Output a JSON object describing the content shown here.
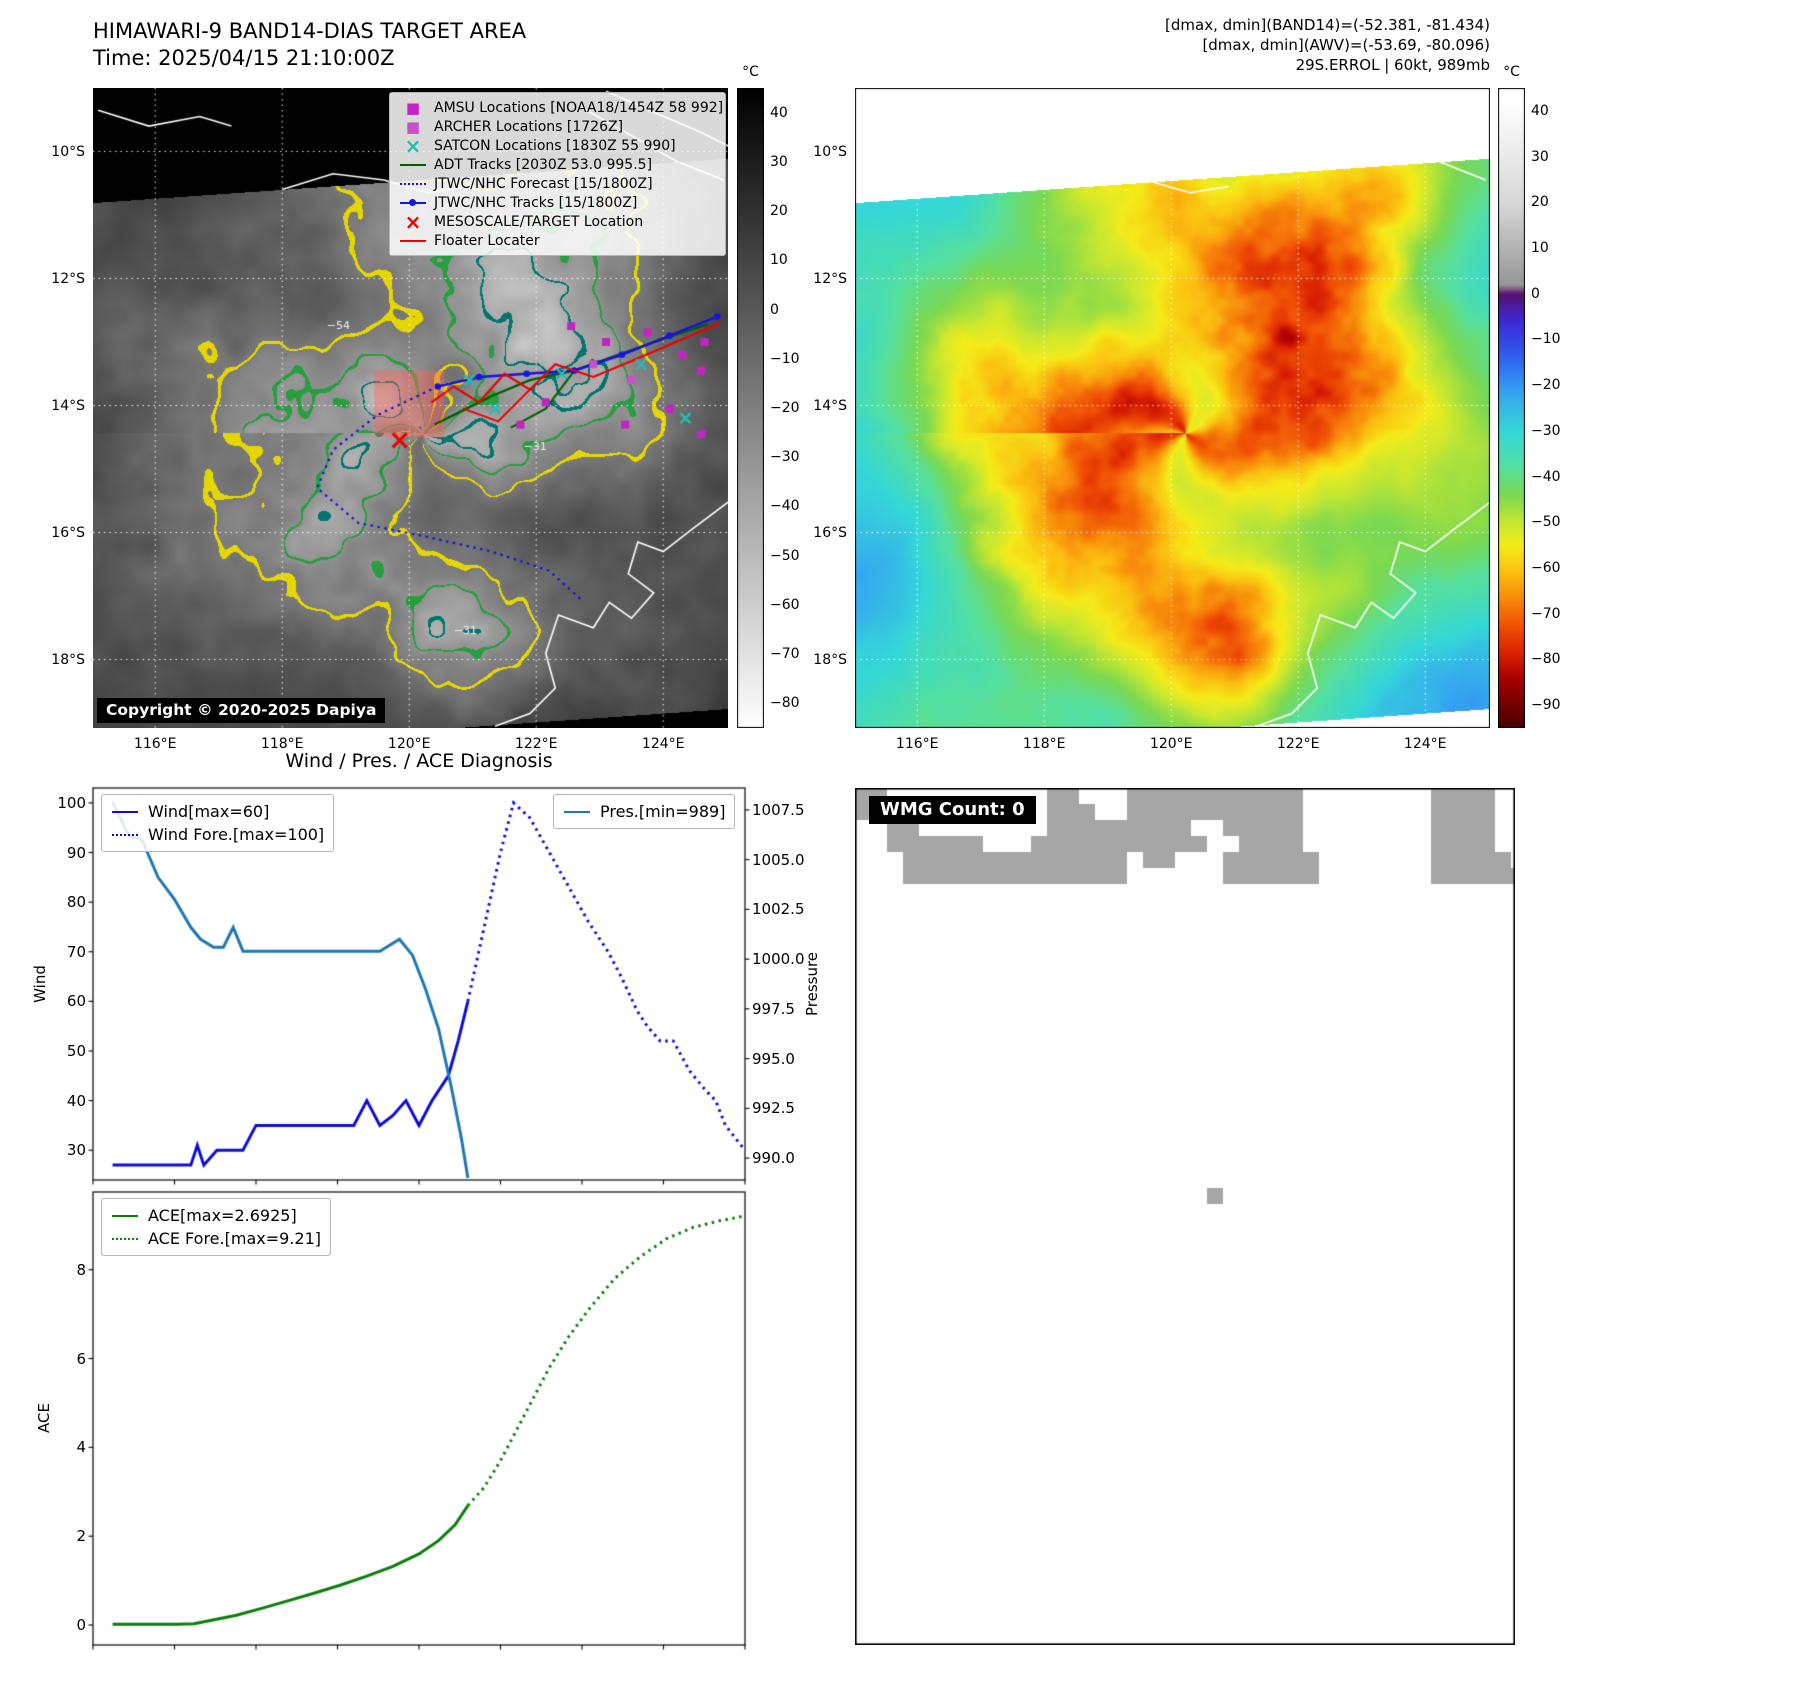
{
  "tl": {
    "title": "HIMAWARI-9 BAND14-DIAS TARGET AREA",
    "time": "Time: 2025/04/15 21:10:00Z",
    "copyright": "Copyright © 2020-2025 Dapiya",
    "colorbar": {
      "unit": "°C",
      "vmax": 45,
      "vmin": -85,
      "ticks": [
        40,
        30,
        20,
        10,
        0,
        -10,
        -20,
        -30,
        -40,
        -50,
        -60,
        -70,
        -80
      ]
    },
    "lat_vals": [
      10,
      12,
      14,
      16,
      18
    ],
    "lat_labels": [
      "10°S",
      "12°S",
      "14°S",
      "16°S",
      "18°S"
    ],
    "lon_vals": [
      116,
      118,
      120,
      122,
      124
    ],
    "lon_labels": [
      "116°E",
      "118°E",
      "120°E",
      "122°E",
      "124°E"
    ],
    "legend": [
      {
        "label": "AMSU Locations [NOAA18/1454Z 58 992]",
        "marker": "square",
        "color": "#c324c3",
        "icon": "amsu-square-icon"
      },
      {
        "label": "ARCHER Locations [1726Z]",
        "marker": "square",
        "color": "#cb4fcb",
        "icon": "archer-square-icon"
      },
      {
        "label": "SATCON Locations [1830Z 55 990]",
        "marker": "x",
        "color": "#1fbfb0",
        "icon": "satcon-x-icon"
      },
      {
        "label": "ADT Tracks [2030Z 53.0 995.5]",
        "marker": "line",
        "color": "#006000",
        "icon": "adt-line-icon"
      },
      {
        "label": "JTWC/NHC Forecast [15/1800Z]",
        "marker": "dotted",
        "color": "#1414e0",
        "icon": "forecast-dotted-icon"
      },
      {
        "label": "JTWC/NHC Tracks [15/1800Z]",
        "marker": "line-dot",
        "color": "#1414e0",
        "icon": "track-line-icon"
      },
      {
        "label": "MESOSCALE/TARGET Location",
        "marker": "x",
        "color": "#f00000",
        "icon": "target-x-icon"
      },
      {
        "label": "Floater Locater",
        "marker": "line",
        "color": "#f00000",
        "icon": "floater-line-icon"
      }
    ],
    "map": {
      "target_box": {
        "lon1": 119.45,
        "lat1": 13.45,
        "lon2": 120.55,
        "lat2": 14.5
      },
      "target_x": {
        "lon": 119.85,
        "lat": 14.55
      },
      "tracks": [
        {
          "name": "adt-track",
          "color": "#006000",
          "style": "solid",
          "width": 2.4,
          "points": [
            [
              124.7,
              12.72
            ],
            [
              124.0,
              12.95
            ],
            [
              123.3,
              13.2
            ],
            [
              122.6,
              13.45
            ],
            [
              121.9,
              13.6
            ],
            [
              121.3,
              13.85
            ],
            [
              120.8,
              14.1
            ],
            [
              120.4,
              14.3
            ]
          ]
        },
        {
          "name": "adt-track-2",
          "color": "#006000",
          "style": "solid",
          "width": 2.0,
          "points": [
            [
              122.6,
              13.45
            ],
            [
              122.15,
              14.05
            ],
            [
              121.6,
              14.35
            ]
          ]
        },
        {
          "name": "jtwc-track",
          "color": "#1414e0",
          "style": "solid",
          "width": 2.6,
          "marker": "dot",
          "points": [
            [
              124.85,
              12.6
            ],
            [
              124.1,
              12.9
            ],
            [
              123.35,
              13.2
            ],
            [
              122.6,
              13.45
            ],
            [
              121.85,
              13.5
            ],
            [
              121.1,
              13.55
            ],
            [
              120.45,
              13.7
            ]
          ]
        },
        {
          "name": "floater-track",
          "color": "#ee0000",
          "style": "solid",
          "width": 2.2,
          "points": [
            [
              124.9,
              12.7
            ],
            [
              124.2,
              13.0
            ],
            [
              123.5,
              13.3
            ],
            [
              122.9,
              13.55
            ],
            [
              122.3,
              13.35
            ],
            [
              121.9,
              13.75
            ],
            [
              121.5,
              13.5
            ],
            [
              121.1,
              13.95
            ],
            [
              120.7,
              13.7
            ],
            [
              120.35,
              13.95
            ]
          ]
        },
        {
          "name": "floater-track-2",
          "color": "#ee0000",
          "style": "solid",
          "width": 2.0,
          "points": [
            [
              121.9,
              13.75
            ],
            [
              121.4,
              14.25
            ],
            [
              120.85,
              14.05
            ]
          ]
        },
        {
          "name": "jtwc-forecast",
          "color": "#1414e0",
          "style": "dotted",
          "width": 2.2,
          "points": [
            [
              120.45,
              13.7
            ],
            [
              119.5,
              14.15
            ],
            [
              118.8,
              14.7
            ],
            [
              118.55,
              15.3
            ],
            [
              119.2,
              15.85
            ],
            [
              120.2,
              16.05
            ],
            [
              121.3,
              16.3
            ],
            [
              122.2,
              16.6
            ],
            [
              122.7,
              17.05
            ]
          ]
        }
      ],
      "amsu_squares": [
        [
          122.55,
          12.75
        ],
        [
          123.1,
          13.0
        ],
        [
          123.75,
          12.85
        ],
        [
          124.3,
          13.2
        ],
        [
          124.65,
          13.0
        ],
        [
          124.6,
          13.45
        ],
        [
          122.15,
          13.95
        ],
        [
          121.75,
          14.3
        ],
        [
          123.4,
          14.3
        ],
        [
          124.1,
          14.05
        ],
        [
          124.6,
          14.45
        ]
      ],
      "archer_squares": [
        [
          122.9,
          13.35
        ],
        [
          123.5,
          13.6
        ]
      ],
      "satcon_crosses": [
        [
          121.35,
          14.05
        ],
        [
          122.4,
          13.5
        ],
        [
          123.65,
          13.35
        ],
        [
          124.35,
          14.2
        ],
        [
          120.95,
          13.6
        ]
      ],
      "contour_labels": [
        {
          "text": "−54",
          "lon": 118.7,
          "lat": 12.8
        },
        {
          "text": "−31",
          "lon": 121.8,
          "lat": 14.7
        },
        {
          "text": "−31",
          "lon": 120.7,
          "lat": 17.6
        }
      ],
      "coasts": [
        [
          [
            115.1,
            9.35
          ],
          [
            115.9,
            9.6
          ],
          [
            116.7,
            9.45
          ],
          [
            117.2,
            9.6
          ]
        ],
        [
          [
            118.0,
            10.6
          ],
          [
            118.8,
            10.35
          ],
          [
            119.6,
            10.45
          ],
          [
            120.3,
            10.65
          ],
          [
            120.9,
            10.55
          ]
        ],
        [
          [
            122.7,
            9.3
          ],
          [
            123.5,
            9.75
          ],
          [
            124.2,
            10.15
          ],
          [
            124.95,
            10.45
          ]
        ],
        [
          [
            123.1,
            9.05
          ],
          [
            123.9,
            9.4
          ],
          [
            124.6,
            9.7
          ],
          [
            125.1,
            9.95
          ]
        ],
        [
          [
            125.05,
            15.5
          ],
          [
            124.45,
            15.95
          ],
          [
            124.0,
            16.3
          ],
          [
            123.6,
            16.15
          ],
          [
            123.45,
            16.65
          ],
          [
            123.85,
            16.95
          ],
          [
            123.5,
            17.35
          ],
          [
            123.15,
            17.1
          ],
          [
            122.9,
            17.5
          ],
          [
            122.35,
            17.3
          ],
          [
            122.15,
            17.9
          ],
          [
            122.3,
            18.45
          ],
          [
            121.9,
            18.85
          ],
          [
            121.35,
            19.05
          ]
        ]
      ]
    }
  },
  "tr": {
    "header_lines": [
      "[dmax, dmin](BAND14)=(-52.381, -81.434)",
      "[dmax, dmin](AWV)=(-53.69, -80.096)",
      "29S.ERROL | 60kt, 989mb"
    ],
    "colorbar": {
      "unit": "°C",
      "vmax": 45,
      "vmin": -95,
      "ticks": [
        40,
        30,
        20,
        10,
        0,
        -10,
        -20,
        -30,
        -40,
        -50,
        -60,
        -70,
        -80,
        -90
      ]
    },
    "lat_vals": [
      10,
      12,
      14,
      16,
      18
    ],
    "lat_labels": [
      "10°S",
      "12°S",
      "14°S",
      "16°S",
      "18°S"
    ],
    "lon_vals": [
      116,
      118,
      120,
      122,
      124
    ],
    "lon_labels": [
      "116°E",
      "118°E",
      "120°E",
      "122°E",
      "124°E"
    ]
  },
  "bl": {
    "title": "Wind / Pres. / ACE Diagnosis",
    "wind_axis_label": "Wind",
    "pressure_axis_label": "Pressure",
    "ace_axis_label": "ACE"
  },
  "br": {
    "wmg_label": "WMG Count: 0"
  },
  "chart_data": [
    {
      "type": "line",
      "title": "Wind / Pres. / ACE Diagnosis",
      "xlabel": "",
      "ylabel_left": "Wind",
      "ylabel_right": "Pressure",
      "ylim_left": [
        24,
        103
      ],
      "yticks_left": [
        30,
        40,
        50,
        60,
        70,
        80,
        90,
        100
      ],
      "ylim_right": [
        988.9,
        1008.6
      ],
      "yticks_right": [
        990.0,
        992.5,
        995.0,
        997.5,
        1000.0,
        1002.5,
        1005.0,
        1007.5
      ],
      "legend_position": "upper-left and upper-right",
      "series": [
        {
          "name": "Wind[max=60]",
          "axis": "left",
          "style": "solid",
          "color": "#0d0dd6",
          "x": [
            0.03,
            0.1,
            0.15,
            0.16,
            0.17,
            0.19,
            0.23,
            0.25,
            0.4,
            0.42,
            0.44,
            0.46,
            0.48,
            0.5,
            0.52,
            0.545,
            0.56,
            0.575
          ],
          "y": [
            27,
            27,
            27,
            31,
            27,
            30,
            30,
            35,
            35,
            40,
            35,
            37,
            40,
            35,
            40,
            45,
            52,
            60
          ]
        },
        {
          "name": "Wind Fore.[max=100]",
          "axis": "left",
          "style": "dotted",
          "color": "#0d0dd6",
          "x": [
            0.575,
            0.6,
            0.625,
            0.645,
            0.67,
            0.7,
            0.73,
            0.76,
            0.79,
            0.81,
            0.835,
            0.85,
            0.87,
            0.89,
            0.915,
            0.94,
            0.955,
            0.97,
            1.0
          ],
          "y": [
            60,
            75,
            90,
            100,
            97,
            90,
            83,
            76,
            70,
            65,
            58,
            55,
            52,
            52,
            46,
            42,
            40,
            35,
            30
          ]
        },
        {
          "name": "Pres.[min=989]",
          "axis": "right",
          "style": "solid",
          "color": "#1f77b4",
          "x": [
            0.03,
            0.055,
            0.075,
            0.1,
            0.125,
            0.15,
            0.165,
            0.185,
            0.2,
            0.215,
            0.23,
            0.3,
            0.4,
            0.44,
            0.47,
            0.49,
            0.51,
            0.53,
            0.55,
            0.565,
            0.575
          ],
          "y": [
            1007.9,
            1006.2,
            1006.0,
            1004.1,
            1003.0,
            1001.6,
            1001.0,
            1000.6,
            1000.6,
            1001.6,
            1000.4,
            1000.4,
            1000.4,
            1000.4,
            1001.0,
            1000.2,
            998.5,
            996.5,
            993.5,
            991.0,
            989.0
          ]
        }
      ]
    },
    {
      "type": "line",
      "ylabel_left": "ACE",
      "ylim_left": [
        -0.45,
        9.75
      ],
      "yticks_left": [
        0,
        2,
        4,
        6,
        8
      ],
      "series": [
        {
          "name": "ACE[max=2.6925]",
          "axis": "left",
          "style": "solid",
          "color": "#0c7c0c",
          "x": [
            0.03,
            0.08,
            0.13,
            0.155,
            0.18,
            0.22,
            0.26,
            0.3,
            0.34,
            0.38,
            0.42,
            0.46,
            0.5,
            0.53,
            0.555,
            0.575
          ],
          "y": [
            0.02,
            0.02,
            0.02,
            0.03,
            0.1,
            0.22,
            0.38,
            0.55,
            0.72,
            0.9,
            1.1,
            1.32,
            1.6,
            1.9,
            2.25,
            2.69
          ]
        },
        {
          "name": "ACE Fore.[max=9.21]",
          "axis": "left",
          "style": "dotted",
          "color": "#0c7c0c",
          "x": [
            0.575,
            0.6,
            0.625,
            0.65,
            0.675,
            0.7,
            0.73,
            0.76,
            0.8,
            0.84,
            0.88,
            0.92,
            0.96,
            1.0
          ],
          "y": [
            2.69,
            3.1,
            3.7,
            4.4,
            5.1,
            5.8,
            6.5,
            7.1,
            7.8,
            8.3,
            8.7,
            8.95,
            9.1,
            9.21
          ]
        }
      ]
    }
  ]
}
